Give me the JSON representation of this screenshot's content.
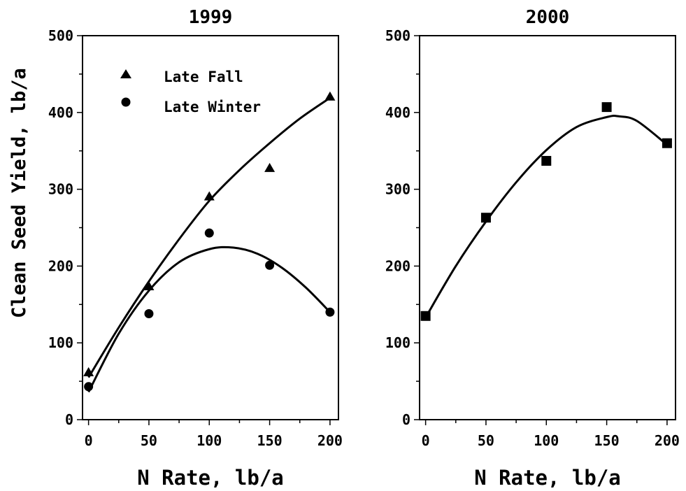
{
  "chart_data": [
    {
      "type": "scatter",
      "title": "1999",
      "xlabel": "N Rate, lb/a",
      "ylabel": "Clean Seed Yield, lb/a",
      "xlim": [
        -5,
        207
      ],
      "ylim": [
        0,
        500
      ],
      "x_ticks": [
        0,
        50,
        100,
        150,
        200
      ],
      "y_ticks": [
        0,
        100,
        200,
        300,
        400,
        500
      ],
      "legend_position": "top-left",
      "series": [
        {
          "name": "Late Fall",
          "marker": "triangle",
          "x": [
            0,
            50,
            100,
            150,
            200
          ],
          "values": [
            62,
            174,
            291,
            328,
            421
          ],
          "fit_x": [
            0,
            25,
            50,
            75,
            100,
            125,
            150,
            175,
            200
          ],
          "fit_y": [
            55,
            120,
            180,
            235,
            285,
            325,
            360,
            392,
            419
          ]
        },
        {
          "name": "Late Winter",
          "marker": "circle",
          "x": [
            0,
            50,
            100,
            150,
            200
          ],
          "values": [
            43,
            138,
            243,
            201,
            140
          ],
          "fit_x": [
            0,
            25,
            50,
            75,
            100,
            120,
            140,
            160,
            180,
            200
          ],
          "fit_y": [
            36,
            112,
            168,
            205,
            222,
            224,
            216,
            198,
            172,
            140
          ]
        }
      ]
    },
    {
      "type": "scatter",
      "title": "2000",
      "xlabel": "N Rate, lb/a",
      "ylabel": "",
      "xlim": [
        -5,
        207
      ],
      "ylim": [
        0,
        500
      ],
      "x_ticks": [
        0,
        50,
        100,
        150,
        200
      ],
      "y_ticks": [
        0,
        100,
        200,
        300,
        400,
        500
      ],
      "series": [
        {
          "name": "",
          "marker": "square",
          "x": [
            0,
            50,
            100,
            150,
            200
          ],
          "values": [
            135,
            263,
            337,
            407,
            360
          ],
          "fit_x": [
            0,
            25,
            50,
            75,
            100,
            125,
            150,
            160,
            175,
            200
          ],
          "fit_y": [
            133,
            200,
            258,
            309,
            351,
            381,
            394,
            395,
            389,
            358
          ]
        }
      ]
    }
  ]
}
